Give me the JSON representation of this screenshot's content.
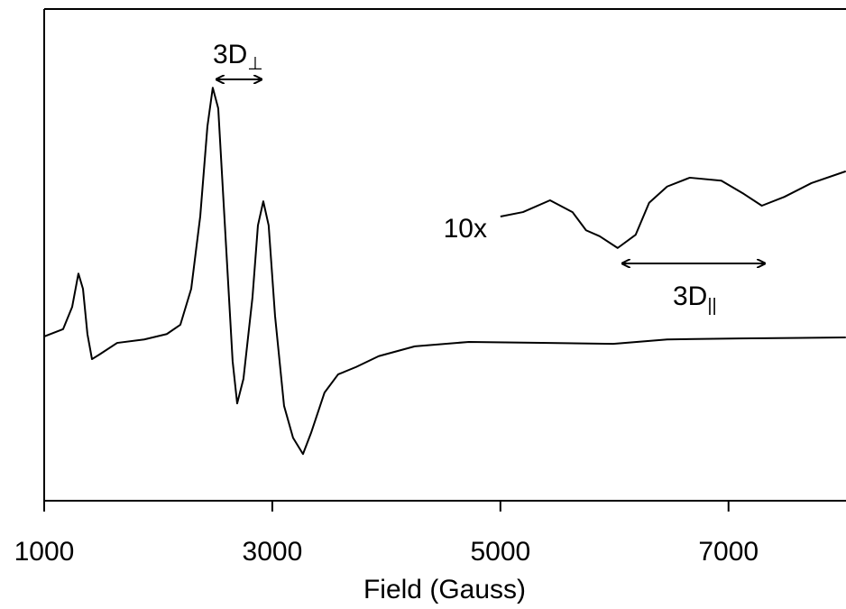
{
  "chart_data": {
    "type": "line",
    "x_label": "Field (Gauss)",
    "xlim": [
      1000,
      8030
    ],
    "xticks": [
      1000,
      3000,
      5000,
      7000
    ],
    "ylim": [
      0,
      100
    ],
    "series": [
      {
        "color": "#000000",
        "x": [
          1000,
          1166,
          1245,
          1300,
          1340,
          1379,
          1419,
          1482,
          1640,
          1877,
          2075,
          2194,
          2289,
          2368,
          2431,
          2478,
          2526,
          2589,
          2652,
          2692,
          2747,
          2826,
          2874,
          2921,
          2968,
          3024,
          3103,
          3182,
          3269,
          3340,
          3458,
          3577,
          3735,
          3933,
          4249,
          4723,
          5356,
          5988,
          6462,
          7095,
          8028
        ],
        "values": [
          33.4,
          34.9,
          39.4,
          46.2,
          43.1,
          33.9,
          28.8,
          29.7,
          32.1,
          32.8,
          33.9,
          35.8,
          43.1,
          57.8,
          76.1,
          84.0,
          79.8,
          54.1,
          28.4,
          19.8,
          24.8,
          41.3,
          56.0,
          60.9,
          56.0,
          37.6,
          19.3,
          12.8,
          9.5,
          13.8,
          22.0,
          25.7,
          27.2,
          29.4,
          31.4,
          32.3,
          32.1,
          31.9,
          32.8,
          33.0,
          33.2
        ]
      },
      {
        "color": "#000000",
        "x": [
          5000,
          5198,
          5435,
          5632,
          5751,
          5870,
          6028,
          6186,
          6304,
          6462,
          6660,
          6937,
          7134,
          7292,
          7490,
          7727,
          8028
        ],
        "values": [
          57.8,
          58.7,
          61.1,
          58.7,
          55.0,
          53.8,
          51.4,
          54.1,
          60.6,
          63.9,
          65.7,
          65.1,
          62.4,
          60.0,
          61.8,
          64.6,
          67.0
        ]
      }
    ],
    "annotations": [
      {
        "text": "3D",
        "subscript": "⊥"
      },
      {
        "text": "10x"
      },
      {
        "text": "3D",
        "subscript": "||"
      }
    ]
  }
}
